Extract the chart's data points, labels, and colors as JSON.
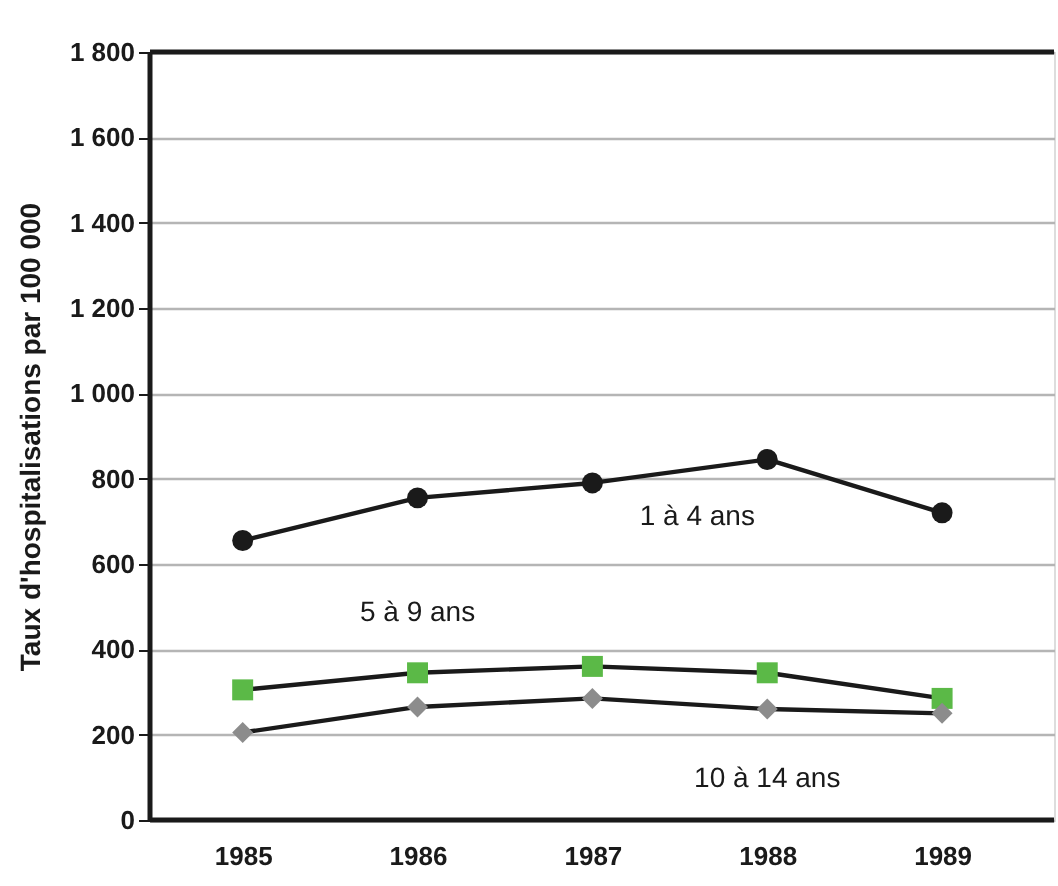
{
  "chart_data": {
    "type": "line",
    "ylabel": "Taux d'hospitalisations par 100 000",
    "x": [
      1985,
      1986,
      1987,
      1988,
      1989
    ],
    "series": [
      {
        "name": "1 à 4 ans",
        "color": "#1a1a1a",
        "marker": "circle",
        "values": [
          655,
          755,
          790,
          845,
          720
        ]
      },
      {
        "name": "5 à 9 ans",
        "color": "#5bb947",
        "marker": "square",
        "values": [
          305,
          345,
          360,
          345,
          285
        ]
      },
      {
        "name": "10 à 14 ans",
        "color": "#8c8c8c",
        "marker": "diamond",
        "values": [
          205,
          265,
          285,
          260,
          250
        ]
      }
    ],
    "xlim": [
      1984.47,
      1989.64
    ],
    "xticks": [
      1985,
      1986,
      1987,
      1988,
      1989
    ],
    "ylim": [
      0,
      1800
    ],
    "yticks": [
      0,
      200,
      400,
      600,
      800,
      {
        "value": 1000,
        "label": "1 000"
      },
      {
        "value": 1200,
        "label": "1 200"
      },
      {
        "value": 1400,
        "label": "1 400"
      },
      {
        "value": 1600,
        "label": "1 600"
      },
      {
        "value": 1800,
        "label": "1 800"
      }
    ],
    "grid": "y"
  }
}
